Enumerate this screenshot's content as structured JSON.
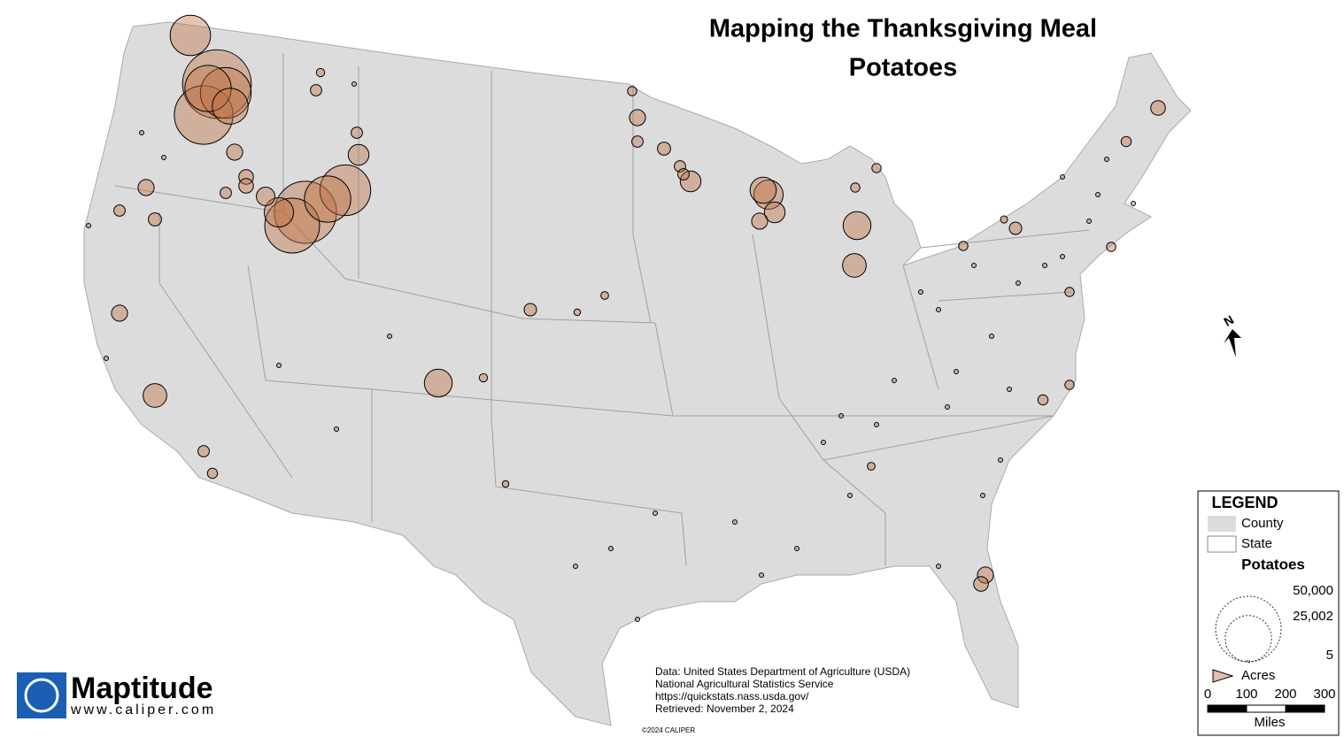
{
  "title": "Mapping the Thanksgiving Meal",
  "subtitle": "Potatoes",
  "legend": {
    "heading": "LEGEND",
    "items": [
      "County",
      "State"
    ],
    "layer": "Potatoes",
    "sizes": [
      {
        "value": 50000,
        "label": "50,000"
      },
      {
        "value": 25002,
        "label": "25,002"
      },
      5
    ],
    "unit": "Acres"
  },
  "scale": {
    "ticks": [
      0,
      100,
      200,
      300
    ],
    "unit": "Miles"
  },
  "north": "N",
  "source": [
    "Data: United States Department of Agriculture (USDA)",
    "National Agricultural Statistics Service",
    "https://quickstats.nass.usda.gov/",
    "Retrieved: November 2, 2024"
  ],
  "logo": {
    "name": "Maptitude",
    "url": "www.caliper.com"
  },
  "copyright": "©2024 CALIPER",
  "points": [
    {
      "acres": 55000
    },
    {
      "acres": 40000
    },
    {
      "acres": 30000
    },
    {
      "acres": 25000
    },
    {
      "acres": 15000
    },
    {
      "acres": 19000
    },
    {
      "acres": 3000
    },
    {
      "acres": 2500
    },
    {
      "acres": 2500
    },
    {
      "acres": 1500
    },
    {
      "acres": 3000
    },
    {
      "acres": 1500
    },
    {
      "acres": 2000
    },
    {
      "acres": 45000
    },
    {
      "acres": 35000
    },
    {
      "acres": 30000
    },
    {
      "acres": 25000
    },
    {
      "acres": 10000
    },
    {
      "acres": 4000
    },
    {
      "acres": 5000
    },
    {
      "acres": 1500
    },
    {
      "acres": 800
    },
    {
      "acres": 1500
    },
    {
      "acres": 6500
    },
    {
      "acres": 3000
    },
    {
      "acres": 1500
    },
    {
      "acres": 1200
    },
    {
      "acres": 9000
    },
    {
      "acres": 800
    },
    {
      "acres": 1800
    },
    {
      "acres": 700
    },
    {
      "acres": 500
    },
    {
      "acres": 3000
    },
    {
      "acres": 1000
    },
    {
      "acres": 1500
    },
    {
      "acres": 2000
    },
    {
      "acres": 1500
    },
    {
      "acres": 5000
    },
    {
      "acres": 1500
    },
    {
      "acres": 10000
    },
    {
      "acres": 5000
    },
    {
      "acres": 8000
    },
    {
      "acres": 3000
    },
    {
      "acres": 9000
    },
    {
      "acres": 6500
    },
    {
      "acres": 1000
    },
    {
      "acres": 1000
    },
    {
      "acres": 2500
    },
    {
      "acres": 1200
    },
    {
      "acres": 3000
    },
    {
      "acres": 2500
    },
    {
      "acres": 1200
    },
    {
      "acres": 1000
    },
    {
      "acres": 1000
    },
    {
      "acres": 1800
    },
    {
      "acres": 600
    },
    {
      "acres": 1000
    },
    {
      "acres": 1000
    },
    {
      "acres": 500
    },
    {
      "acres": 700
    },
    {
      "acres": 60
    },
    {
      "acres": 60
    },
    {
      "acres": 60
    },
    {
      "acres": 60
    },
    {
      "acres": 60
    },
    {
      "acres": 60
    },
    {
      "acres": 60
    },
    {
      "acres": 60
    },
    {
      "acres": 60
    },
    {
      "acres": 60
    },
    {
      "acres": 60
    },
    {
      "acres": 60
    },
    {
      "acres": 60
    },
    {
      "acres": 60
    },
    {
      "acres": 60
    },
    {
      "acres": 60
    },
    {
      "acres": 60
    },
    {
      "acres": 60
    },
    {
      "acres": 60
    },
    {
      "acres": 60
    },
    {
      "acres": 60
    },
    {
      "acres": 60
    },
    {
      "acres": 60
    },
    {
      "acres": 60
    },
    {
      "acres": 60
    },
    {
      "acres": 60
    },
    {
      "acres": 60
    },
    {
      "acres": 60
    },
    {
      "acres": 60
    },
    {
      "acres": 60
    },
    {
      "acres": 60
    },
    {
      "acres": 60
    },
    {
      "acres": 60
    },
    {
      "acres": 60
    },
    {
      "acres": 60
    },
    {
      "acres": 60
    },
    {
      "acres": 60
    },
    {
      "acres": 60
    }
  ]
}
